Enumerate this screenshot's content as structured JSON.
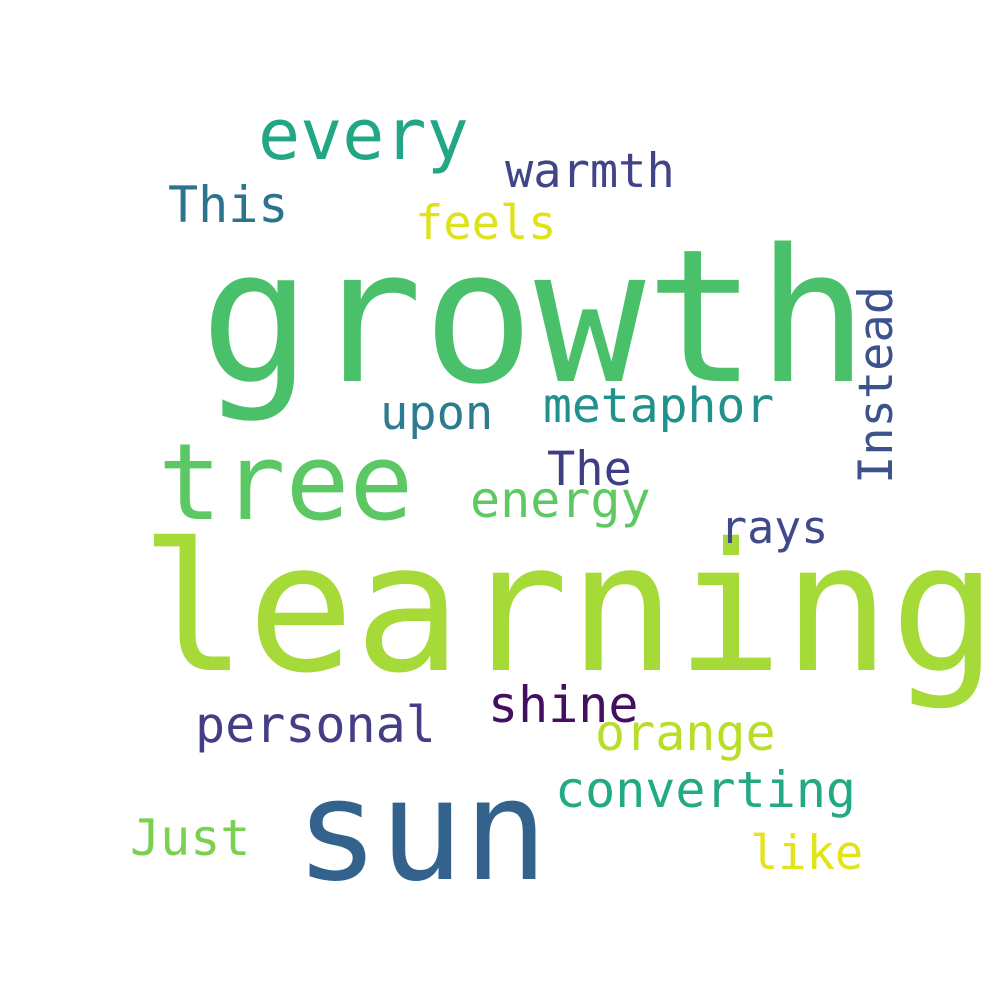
{
  "words": [
    {
      "text": "growth",
      "color": "#4bc06a"
    },
    {
      "text": "learning",
      "color": "#a5da38"
    },
    {
      "text": "sun",
      "color": "#33638d"
    },
    {
      "text": "tree",
      "color": "#5cc863"
    },
    {
      "text": "every",
      "color": "#22a685"
    },
    {
      "text": "warmth",
      "color": "#414487"
    },
    {
      "text": "This",
      "color": "#2c738e"
    },
    {
      "text": "feels",
      "color": "#dde318"
    },
    {
      "text": "Instead",
      "color": "#3b528b"
    },
    {
      "text": "metaphor",
      "color": "#21918c"
    },
    {
      "text": "upon",
      "color": "#2c7b8e"
    },
    {
      "text": "The",
      "color": "#3f3e85"
    },
    {
      "text": "energy",
      "color": "#5ec962"
    },
    {
      "text": "rays",
      "color": "#404a8a"
    },
    {
      "text": "shine",
      "color": "#440f5f"
    },
    {
      "text": "personal",
      "color": "#433e85"
    },
    {
      "text": "orange",
      "color": "#b9de28"
    },
    {
      "text": "converting",
      "color": "#23a983"
    },
    {
      "text": "Just",
      "color": "#7ad151"
    },
    {
      "text": "like",
      "color": "#e2e418"
    }
  ]
}
